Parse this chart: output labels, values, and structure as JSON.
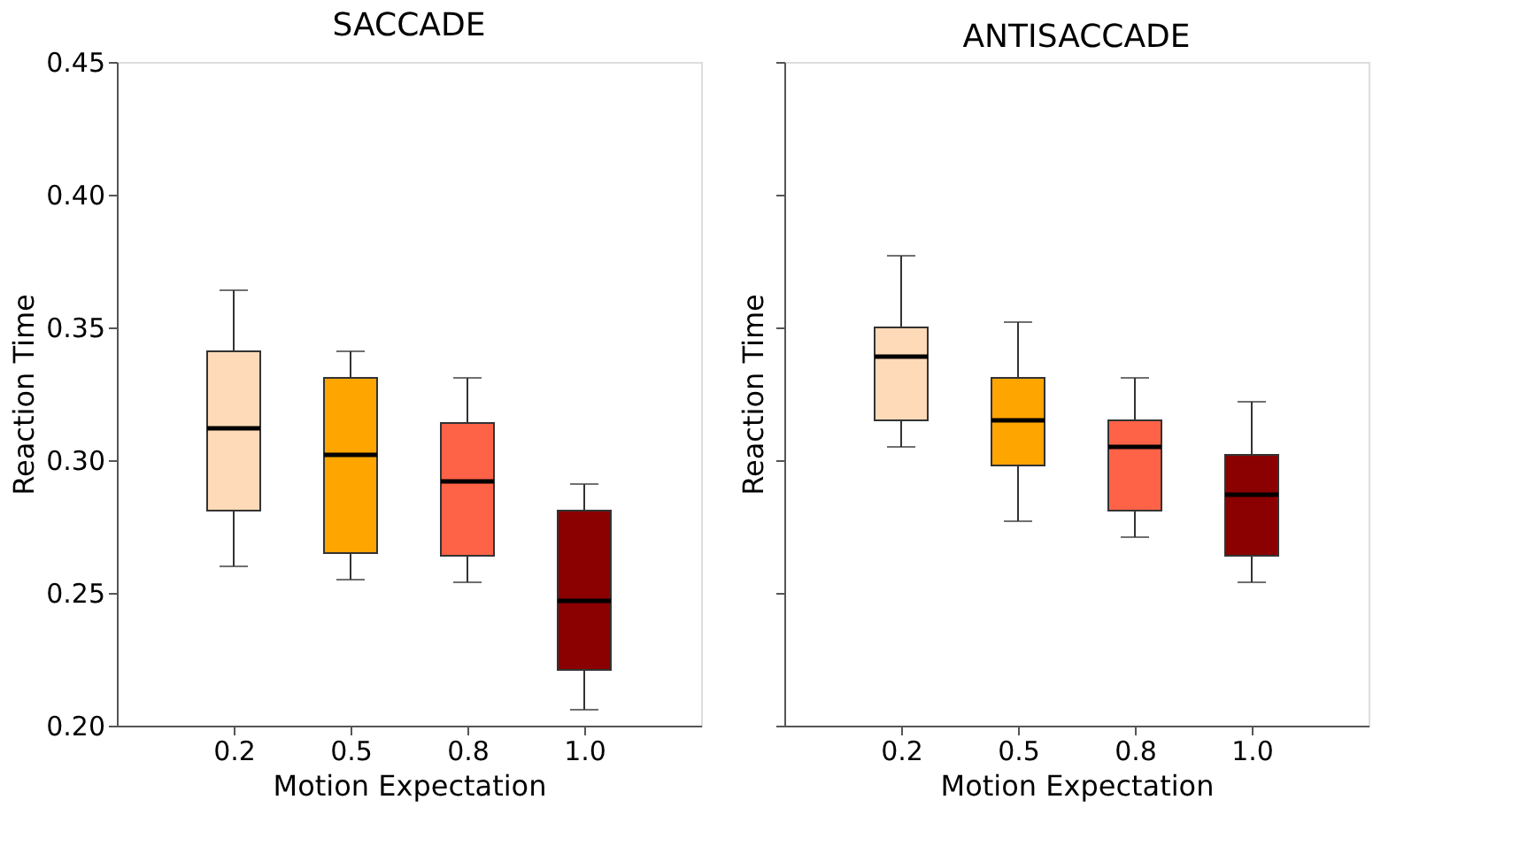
{
  "chart_data": [
    {
      "type": "box",
      "title": "SACCADE",
      "xlabel": "Motion Expectation",
      "ylabel": "Reaction Time",
      "categories": [
        "0.2",
        "0.5",
        "0.8",
        "1.0"
      ],
      "colors": [
        "#ffdab9",
        "#ffa500",
        "#ff6347",
        "#8b0000"
      ],
      "boxes": [
        {
          "low": 0.26,
          "q1": 0.281,
          "median": 0.312,
          "q3": 0.341,
          "high": 0.364
        },
        {
          "low": 0.255,
          "q1": 0.265,
          "median": 0.302,
          "q3": 0.331,
          "high": 0.341
        },
        {
          "low": 0.254,
          "q1": 0.264,
          "median": 0.292,
          "q3": 0.314,
          "high": 0.331
        },
        {
          "low": 0.206,
          "q1": 0.221,
          "median": 0.247,
          "q3": 0.281,
          "high": 0.291
        }
      ],
      "ylim": [
        0.2,
        0.45
      ],
      "yticks": [
        {
          "value": 0.2,
          "label": "0.20"
        },
        {
          "value": 0.25,
          "label": "0.25"
        },
        {
          "value": 0.3,
          "label": "0.30"
        },
        {
          "value": 0.35,
          "label": "0.35"
        },
        {
          "value": 0.4,
          "label": "0.40"
        },
        {
          "value": 0.45,
          "label": "0.45"
        }
      ],
      "grid": false
    },
    {
      "type": "box",
      "title": "ANTISACCADE",
      "xlabel": "Motion Expectation",
      "ylabel": "Reaction Time",
      "categories": [
        "0.2",
        "0.5",
        "0.8",
        "1.0"
      ],
      "colors": [
        "#ffdab9",
        "#ffa500",
        "#ff6347",
        "#8b0000"
      ],
      "boxes": [
        {
          "low": 0.305,
          "q1": 0.315,
          "median": 0.339,
          "q3": 0.35,
          "high": 0.377
        },
        {
          "low": 0.277,
          "q1": 0.298,
          "median": 0.315,
          "q3": 0.331,
          "high": 0.352
        },
        {
          "low": 0.271,
          "q1": 0.281,
          "median": 0.305,
          "q3": 0.315,
          "high": 0.331
        },
        {
          "low": 0.254,
          "q1": 0.264,
          "median": 0.287,
          "q3": 0.302,
          "high": 0.322
        }
      ],
      "ylim": [
        0.2,
        0.45
      ],
      "yticks": [
        {
          "value": 0.2,
          "label": null
        },
        {
          "value": 0.25,
          "label": null
        },
        {
          "value": 0.3,
          "label": null
        },
        {
          "value": 0.35,
          "label": null
        },
        {
          "value": 0.4,
          "label": null
        },
        {
          "value": 0.45,
          "label": null
        }
      ],
      "tick_labels": "x",
      "grid": false
    }
  ]
}
